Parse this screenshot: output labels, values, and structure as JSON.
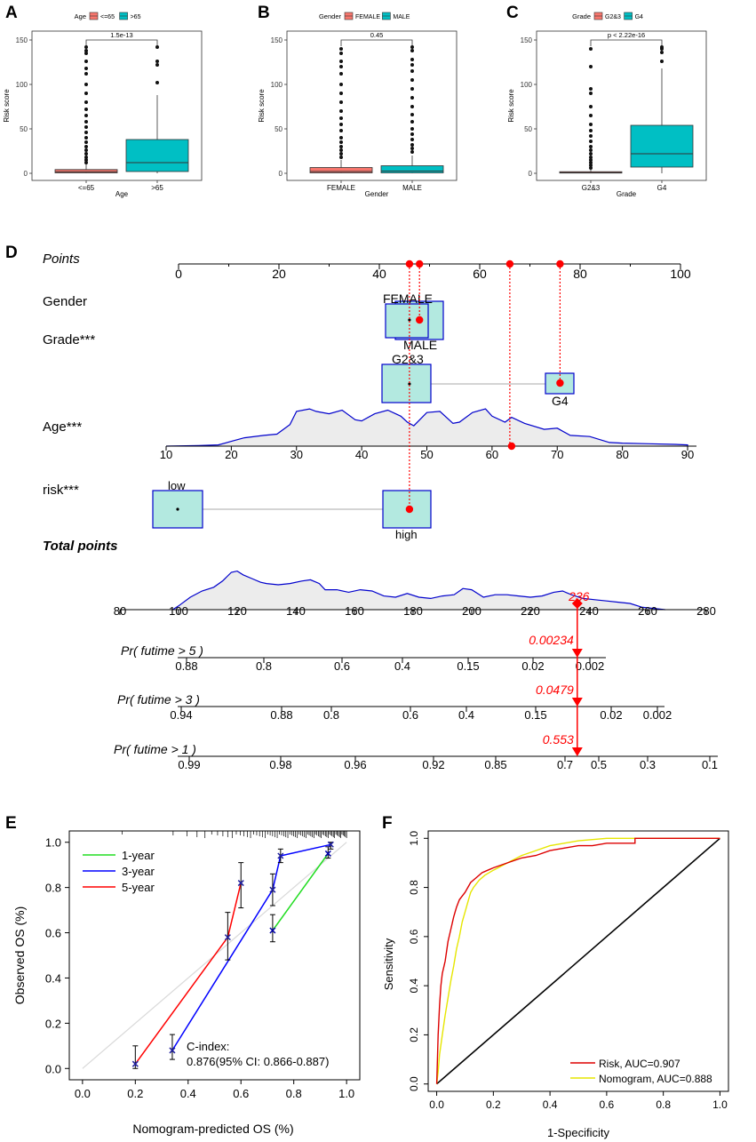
{
  "panel_labels": {
    "A": "A",
    "B": "B",
    "C": "C",
    "D": "D",
    "E": "E",
    "F": "F"
  },
  "colors": {
    "red_box": "#F8766D",
    "teal_box": "#00BFC4",
    "dot_red": "#ff0000",
    "density_line": "#0000cc",
    "density_fill": "#ececec",
    "nomo_box_fill": "#b3e9e0",
    "calib_green": "#22dd22",
    "calib_blue": "#0000ff",
    "calib_red": "#ff0000",
    "roc_risk": "#dd0000",
    "roc_nomo": "#e6e600"
  },
  "chart_data": [
    {
      "panel": "A",
      "type": "box",
      "legend_title": "Age",
      "legend_items": [
        "<=65",
        ">65"
      ],
      "categories": [
        "<=65",
        ">65"
      ],
      "xlabel": "Age",
      "ylabel": "Risk score",
      "ylim": [
        0,
        155
      ],
      "yticks": [
        0,
        50,
        100,
        150
      ],
      "pvalue": "1.5e-13",
      "boxes": [
        {
          "name": "<=65",
          "q1": 0.5,
          "median": 1.8,
          "q3": 4.2,
          "whisker_low": 0,
          "whisker_high": 10,
          "outliers": [
            12,
            15,
            18,
            22,
            26,
            30,
            35,
            40,
            46,
            52,
            58,
            65,
            72,
            80,
            90,
            100,
            112,
            118,
            126,
            135,
            138,
            142
          ]
        },
        {
          "name": ">65",
          "q1": 2,
          "median": 12,
          "q3": 38,
          "whisker_low": 0,
          "whisker_high": 88,
          "outliers": [
            102,
            122,
            126,
            142
          ]
        }
      ]
    },
    {
      "panel": "B",
      "type": "box",
      "legend_title": "Gender",
      "legend_items": [
        "FEMALE",
        "MALE"
      ],
      "categories": [
        "FEMALE",
        "MALE"
      ],
      "xlabel": "Gender",
      "ylabel": "Risk score",
      "ylim": [
        0,
        155
      ],
      "yticks": [
        0,
        50,
        100,
        150
      ],
      "pvalue": "0.45",
      "boxes": [
        {
          "name": "FEMALE",
          "q1": 0.5,
          "median": 2,
          "q3": 6.5,
          "whisker_low": 0,
          "whisker_high": 15,
          "outliers": [
            18,
            22,
            26,
            30,
            35,
            40,
            48,
            55,
            62,
            70,
            80,
            90,
            100,
            112,
            120,
            126,
            135,
            140
          ]
        },
        {
          "name": "MALE",
          "q1": 0.5,
          "median": 2.5,
          "q3": 8.5,
          "whisker_low": 0,
          "whisker_high": 20,
          "outliers": [
            24,
            28,
            32,
            38,
            44,
            50,
            58,
            66,
            75,
            85,
            95,
            105,
            115,
            122,
            128,
            138,
            142
          ]
        }
      ]
    },
    {
      "panel": "C",
      "type": "box",
      "legend_title": "Grade",
      "legend_items": [
        "G2&3",
        "G4"
      ],
      "categories": [
        "G2&3",
        "G4"
      ],
      "xlabel": "Grade",
      "ylabel": "Risk score",
      "ylim": [
        0,
        155
      ],
      "yticks": [
        0,
        50,
        100,
        150
      ],
      "pvalue": "p < 2.22e-16",
      "boxes": [
        {
          "name": "G2&3",
          "q1": 0.3,
          "median": 0.8,
          "q3": 1.8,
          "whisker_low": 0,
          "whisker_high": 4,
          "outliers": [
            6,
            9,
            12,
            15,
            18,
            22,
            26,
            30,
            36,
            42,
            48,
            55,
            65,
            75,
            90,
            95,
            120,
            140
          ]
        },
        {
          "name": "G4",
          "q1": 7,
          "median": 22,
          "q3": 54,
          "whisker_low": 0,
          "whisker_high": 118,
          "outliers": [
            126,
            136,
            140,
            142
          ]
        }
      ]
    },
    {
      "panel": "D",
      "type": "nomogram",
      "points_label": "Points",
      "points_ticks": [
        0,
        20,
        40,
        60,
        80,
        100
      ],
      "variables": [
        {
          "label": "Gender",
          "levels": [
            {
              "name": "FEMALE",
              "points": 46
            },
            {
              "name": "MALE",
              "points": 48
            }
          ],
          "selected_points": 48
        },
        {
          "label": "Grade***",
          "levels": [
            {
              "name": "G2&3",
              "points": 46
            },
            {
              "name": "G4",
              "points": 76
            }
          ],
          "selected_points": 76
        },
        {
          "label": "Age***",
          "axis_ticks": [
            10,
            20,
            30,
            40,
            50,
            60,
            70,
            80,
            90
          ],
          "selected_value": 63,
          "selected_points": 66
        },
        {
          "label": "risk***",
          "levels": [
            {
              "name": "low",
              "points": 0
            },
            {
              "name": "high",
              "points": 46
            }
          ],
          "selected_points": 46
        }
      ],
      "total_label": "Total points",
      "total_ticks": [
        80,
        100,
        120,
        140,
        160,
        180,
        200,
        220,
        240,
        260,
        280
      ],
      "total_value": "236",
      "prob_axes": [
        {
          "label": "Pr( futime > 5 )",
          "ticks": [
            "0.88",
            "0.8",
            "0.6",
            "0.4",
            "0.15",
            "0.02",
            "0.002"
          ],
          "value": "0.00234"
        },
        {
          "label": "Pr( futime > 3 )",
          "ticks": [
            "0.94",
            "0.88",
            "0.8",
            "0.6",
            "0.4",
            "0.15",
            "0.02",
            "0.002"
          ],
          "value": "0.0479"
        },
        {
          "label": "Pr( futime > 1 )",
          "ticks": [
            "0.99",
            "0.98",
            "0.96",
            "0.92",
            "0.85",
            "0.7",
            "0.5",
            "0.3",
            "0.1"
          ],
          "value": "0.553"
        }
      ]
    },
    {
      "panel": "E",
      "type": "line",
      "xlabel": "Nomogram-predicted OS (%)",
      "ylabel": "Observed OS (%)",
      "xlim": [
        0,
        1
      ],
      "ylim": [
        0,
        1
      ],
      "xticks": [
        "0.0",
        "0.2",
        "0.4",
        "0.6",
        "0.8",
        "1.0"
      ],
      "yticks": [
        "0.0",
        "0.2",
        "0.4",
        "0.6",
        "0.8",
        "1.0"
      ],
      "series": [
        {
          "name": "1-year",
          "color": "#22dd22",
          "points": [
            {
              "x": 0.72,
              "y": 0.61,
              "lo": 0.56,
              "hi": 0.68
            },
            {
              "x": 0.93,
              "y": 0.95,
              "lo": 0.93,
              "hi": 0.98
            }
          ]
        },
        {
          "name": "3-year",
          "color": "#0000ff",
          "points": [
            {
              "x": 0.34,
              "y": 0.08,
              "lo": 0.04,
              "hi": 0.15
            },
            {
              "x": 0.72,
              "y": 0.79,
              "lo": 0.72,
              "hi": 0.86
            },
            {
              "x": 0.75,
              "y": 0.94,
              "lo": 0.91,
              "hi": 0.97
            },
            {
              "x": 0.94,
              "y": 0.99,
              "lo": 0.97,
              "hi": 1.0
            }
          ]
        },
        {
          "name": "5-year",
          "color": "#ff0000",
          "points": [
            {
              "x": 0.2,
              "y": 0.02,
              "lo": 0.0,
              "hi": 0.1
            },
            {
              "x": 0.55,
              "y": 0.58,
              "lo": 0.48,
              "hi": 0.69
            },
            {
              "x": 0.6,
              "y": 0.82,
              "lo": 0.71,
              "hi": 0.91
            }
          ]
        }
      ],
      "annotation_title": "C-index:",
      "annotation_value": "0.876(95% CI: 0.866-0.887)"
    },
    {
      "panel": "F",
      "type": "line",
      "xlabel": "1-Specificity",
      "ylabel": "Sensitivity",
      "xlim": [
        0,
        1
      ],
      "ylim": [
        0,
        1
      ],
      "xticks": [
        "0.0",
        "0.2",
        "0.4",
        "0.6",
        "0.8",
        "1.0"
      ],
      "yticks": [
        "0.0",
        "0.2",
        "0.4",
        "0.6",
        "0.8",
        "1.0"
      ],
      "series": [
        {
          "name": "Risk, AUC=0.907",
          "color": "#dd0000",
          "x": [
            0,
            0.005,
            0.01,
            0.015,
            0.02,
            0.03,
            0.04,
            0.05,
            0.06,
            0.07,
            0.08,
            0.1,
            0.12,
            0.14,
            0.16,
            0.18,
            0.2,
            0.25,
            0.3,
            0.35,
            0.4,
            0.45,
            0.5,
            0.55,
            0.6,
            0.7,
            0.7,
            1.0
          ],
          "y": [
            0,
            0.2,
            0.32,
            0.4,
            0.45,
            0.5,
            0.58,
            0.63,
            0.68,
            0.72,
            0.75,
            0.78,
            0.82,
            0.84,
            0.86,
            0.87,
            0.88,
            0.9,
            0.92,
            0.93,
            0.95,
            0.96,
            0.97,
            0.97,
            0.98,
            0.98,
            1.0,
            1.0
          ]
        },
        {
          "name": "Nomogram, AUC=0.888",
          "color": "#e6e600",
          "x": [
            0,
            0.005,
            0.01,
            0.02,
            0.03,
            0.04,
            0.05,
            0.06,
            0.07,
            0.08,
            0.09,
            0.1,
            0.11,
            0.12,
            0.13,
            0.15,
            0.17,
            0.2,
            0.25,
            0.3,
            0.35,
            0.4,
            0.45,
            0.5,
            0.6,
            0.7,
            1.0
          ],
          "y": [
            0,
            0.05,
            0.12,
            0.2,
            0.28,
            0.35,
            0.42,
            0.48,
            0.55,
            0.6,
            0.66,
            0.7,
            0.74,
            0.78,
            0.8,
            0.83,
            0.85,
            0.87,
            0.9,
            0.93,
            0.95,
            0.97,
            0.98,
            0.99,
            1.0,
            1.0,
            1.0
          ]
        },
        {
          "name": "diagonal",
          "color": "#000000",
          "x": [
            0,
            1
          ],
          "y": [
            0,
            1
          ]
        }
      ]
    }
  ]
}
